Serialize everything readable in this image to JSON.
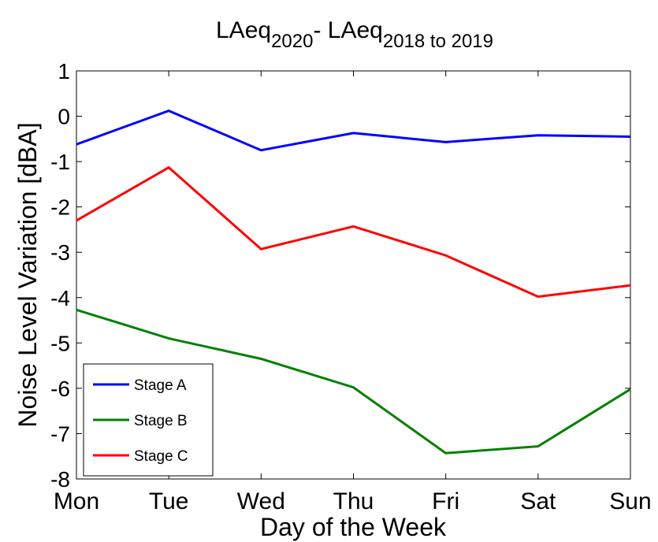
{
  "chart_data": {
    "type": "line",
    "title": [
      "LAeq",
      "2020",
      "- LAeq",
      "2018 to 2019"
    ],
    "x_label": "Day of the Week",
    "y_label": "Noise Level Variation [dBA]",
    "categories": [
      "Mon",
      "Tue",
      "Wed",
      "Thu",
      "Fri",
      "Sat",
      "Sun"
    ],
    "series": [
      {
        "name": "Stage A",
        "color": "#0000ff",
        "values": [
          -0.62,
          0.12,
          -0.75,
          -0.37,
          -0.57,
          -0.42,
          -0.45
        ]
      },
      {
        "name": "Stage B",
        "color": "#008000",
        "values": [
          -4.27,
          -4.9,
          -5.35,
          -5.98,
          -7.43,
          -7.28,
          -6.02
        ]
      },
      {
        "name": "Stage C",
        "color": "#ff0000",
        "values": [
          -2.3,
          -1.13,
          -2.93,
          -2.43,
          -3.07,
          -3.98,
          -3.73
        ]
      }
    ],
    "ylim": [
      -8,
      1
    ],
    "yticks": [
      -8,
      -7,
      -6,
      -5,
      -4,
      -3,
      -2,
      -1,
      0,
      1
    ],
    "grid": false,
    "legend": "lower left"
  }
}
